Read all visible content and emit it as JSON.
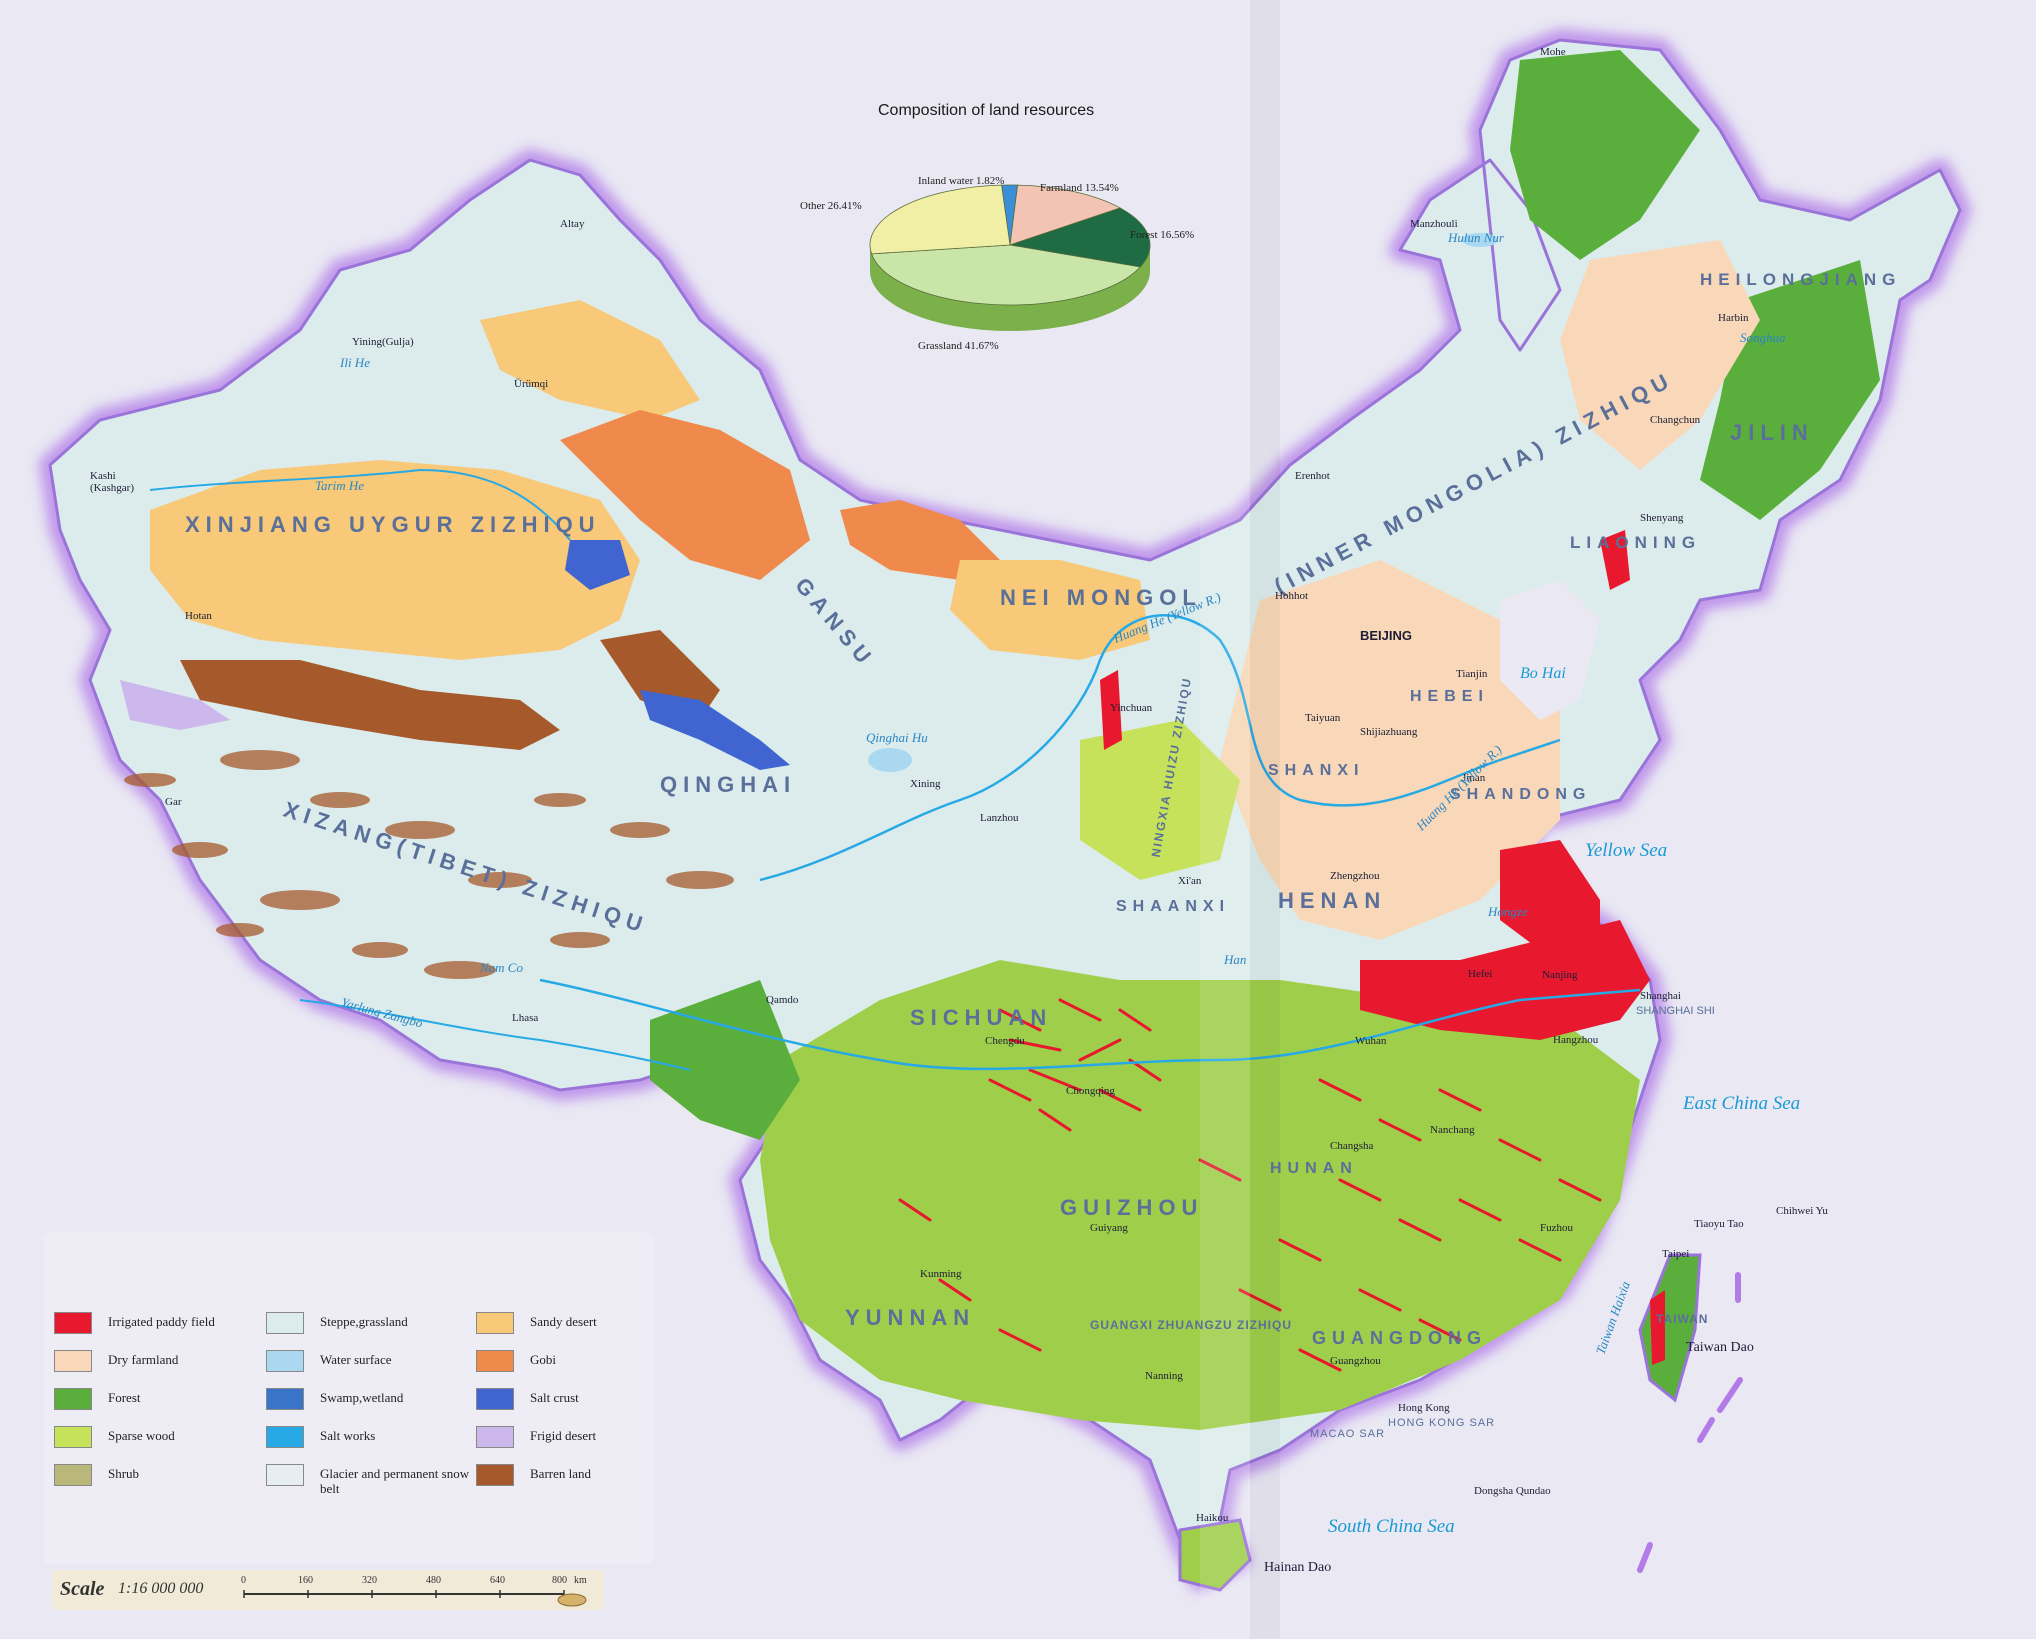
{
  "pie": {
    "title": "Composition of land resources",
    "labels": {
      "inland_water": "Inland water 1.82%",
      "farmland": "Farmland 13.54%",
      "forest": "Forest 16.56%",
      "grassland": "Grassland 41.67%",
      "other": "Other 26.41%"
    }
  },
  "chart_data": {
    "type": "pie",
    "title": "Composition of land resources",
    "categories": [
      "Inland water",
      "Farmland",
      "Forest",
      "Grassland",
      "Other"
    ],
    "values": [
      1.82,
      13.54,
      16.56,
      41.67,
      26.41
    ],
    "colors": [
      "#3a8fd8",
      "#f3c4b3",
      "#1f6b44",
      "#c9e6a8",
      "#f1eea6"
    ]
  },
  "provinces": {
    "xinjiang": "XINJIANG UYGUR ZIZHIQU",
    "xizang": "XIZANG(TIBET) ZIZHIQU",
    "qinghai": "QINGHAI",
    "gansu": "GANSU",
    "nei_mongol": "NEI MONGOL",
    "inner_mongolia": "(INNER MONGOLIA) ZIZHIQU",
    "heilongjiang": "HEILONGJIANG",
    "jilin": "JILIN",
    "liaoning": "LIAONING",
    "hebei": "HEBEI",
    "beijing_prov": "BEIJING",
    "shanxi": "SHANXI",
    "shandong": "SHANDONG",
    "henan": "HENAN",
    "shaanxi": "SHAANXI",
    "sichuan": "SICHUAN",
    "guizhou": "GUIZHOU",
    "yunnan": "YUNNAN",
    "guangxi": "GUANGXI ZHUANGZU ZIZHIQU",
    "guangdong": "GUANGDONG",
    "ningxia": "NINGXIA HUIZU ZIZHIQU",
    "hunan": "HUNAN",
    "taiwan": "TAIWAN"
  },
  "cities": {
    "altay": "Altay",
    "yining": "Yining(Gulja)",
    "urumqi": "Ürümqi",
    "kashi": "Kashi (Kashgar)",
    "hotan": "Hotan",
    "gar": "Gar",
    "lhasa": "Lhasa",
    "qamdo": "Qamdo",
    "xining": "Xining",
    "lanzhou": "Lanzhou",
    "yinchuan": "Yinchuan",
    "hohhot": "Hohhot",
    "erenhot": "Erenhot",
    "manzhouli": "Manzhouli",
    "mohe": "Mohe",
    "harbin": "Harbin",
    "changchun": "Changchun",
    "shenyang": "Shenyang",
    "beijing": "BEIJING",
    "tianjin": "Tianjin",
    "taiyuan": "Taiyuan",
    "shijiazhuang": "Shijiazhuang",
    "jinan": "Jinan",
    "zhengzhou": "Zhengzhou",
    "xian": "Xi'an",
    "chengdu": "Chengdu",
    "chongqing": "Chongqing",
    "wuhan": "Wuhan",
    "hefei": "Hefei",
    "nanjing": "Nanjing",
    "shanghai": "Shanghai",
    "shanghai_shi": "SHANGHAI SHI",
    "hangzhou": "Hangzhou",
    "nanchang": "Nanchang",
    "changsha": "Changsha",
    "fuzhou": "Fuzhou",
    "guiyang": "Guiyang",
    "kunming": "Kunming",
    "nanning": "Nanning",
    "guangzhou": "Guangzhou",
    "hong_kong": "Hong Kong",
    "hong_kong_sar": "HONG KONG SAR",
    "macao_sar": "MACAO SAR",
    "taipei": "Taipei",
    "haikou": "Haikou"
  },
  "waters": {
    "yellow_sea": "Yellow  Sea",
    "east_china_sea": "East China Sea",
    "south_china_sea": "South  China  Sea",
    "bo_hai": "Bo Hai",
    "qinghai_hu": "Qinghai Hu",
    "hulun_nur": "Hulun Nur",
    "nam_co": "Nam Co",
    "tarim": "Tarim He",
    "yarlung": "Yarlung Zangbo",
    "huang_he": "Huang He (Yellow R.)",
    "huang_he2": "Huang He (Yellow R.)",
    "songhua": "Songhua",
    "hongze": "Hongze",
    "ili": "Ili He",
    "han": "Han"
  },
  "islands": {
    "taiwan_dao": "Taiwan Dao",
    "hainan_dao": "Hainan Dao",
    "diaoyu": "Tiaoyu Tao",
    "chiwei": "Chihwei  Yu",
    "dongsha": "Dongsha Qundao",
    "taiwan_strait": "Taiwan Haixia"
  },
  "legend": [
    {
      "label": "Irrigated paddy field",
      "color": "#e8182e"
    },
    {
      "label": "Dry farmland",
      "color": "#f8d8b8"
    },
    {
      "label": "Forest",
      "color": "#5aae3c"
    },
    {
      "label": "Sparse wood",
      "color": "#c6e25a"
    },
    {
      "label": "Shrub",
      "color": "#b9b87a"
    },
    {
      "label": "Steppe,grassland",
      "color": "#dcecec"
    },
    {
      "label": "Water surface",
      "color": "#a9d8f0"
    },
    {
      "label": "Swamp,wetland",
      "color": "#3a74c8"
    },
    {
      "label": "Salt works",
      "color": "#27a9e6"
    },
    {
      "label": "Glacier and permanent snow belt",
      "color": "#e6eef2"
    },
    {
      "label": "Sandy desert",
      "color": "#f8c978"
    },
    {
      "label": "Gobi",
      "color": "#ef8a4c"
    },
    {
      "label": "Salt crust",
      "color": "#4064d0"
    },
    {
      "label": "Frigid desert",
      "color": "#cdb8ee"
    },
    {
      "label": "Barren land",
      "color": "#a65a2c"
    }
  ],
  "scale": {
    "label": "Scale",
    "ratio": "1:16 000 000",
    "ticks": [
      "0",
      "160",
      "320",
      "480",
      "640",
      "800"
    ],
    "unit": "km"
  }
}
